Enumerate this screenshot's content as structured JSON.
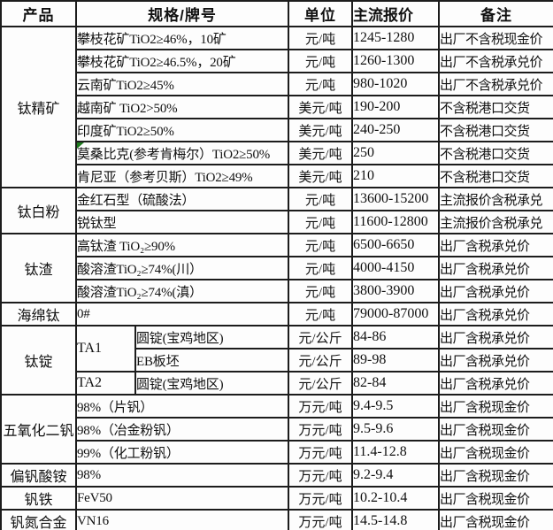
{
  "colors": {
    "marker_green": "#1e7b1e",
    "border": "#1c1c1c",
    "text": "#111111",
    "background": "#fdfdfd"
  },
  "table": {
    "headers": {
      "product": "产品",
      "spec": "规格/牌号",
      "unit": "单位",
      "price": "主流报价",
      "note": "备注"
    },
    "sections": [
      {
        "product": "钛精矿",
        "rows": [
          {
            "spec": "攀枝花矿TiO2≥46%，10矿",
            "unit": "元/吨",
            "price": "1245-1280",
            "note": "出厂不含税现金价"
          },
          {
            "spec": "攀枝花矿TiO2≥46.5%，20矿",
            "unit": "元/吨",
            "price": "1260-1300",
            "note": "出厂不含税承兑价"
          },
          {
            "spec": "云南矿TiO2≥45%",
            "unit": "元/吨",
            "price": "980-1020",
            "note": "出厂不含税承兑价"
          },
          {
            "spec": "越南矿 TiO2>50%",
            "unit": "美元/吨",
            "price": "190-200",
            "note": "不含税港口交货"
          },
          {
            "spec": "印度矿TiO2≥50%",
            "unit": "美元/吨",
            "price": "240-250",
            "note": "不含税港口交货"
          },
          {
            "spec": "莫桑比克(参考肯梅尔）TiO2≥50%",
            "unit": "美元/吨",
            "price": "250",
            "note": "不含税港口交货",
            "marker": true
          },
          {
            "spec": "肯尼亚（参考贝斯）TiO2≥49%",
            "unit": "美元/吨",
            "price": "210",
            "note": "不含税港口交货"
          }
        ]
      },
      {
        "product": "钛白粉",
        "rows": [
          {
            "spec": "金红石型（硫酸法）",
            "unit": "元/吨",
            "price": "13600-15200",
            "note": "主流报价含税承兑"
          },
          {
            "spec": "锐钛型",
            "unit": "元/吨",
            "price": "11600-12800",
            "note": "主流报价含税承兑"
          }
        ]
      },
      {
        "product": "钛渣",
        "rows": [
          {
            "spec": "高钛渣 TiO₂≥90%",
            "unit": "元/吨",
            "price": "6500-6650",
            "note": "出厂含税承兑价"
          },
          {
            "spec": "酸溶渣TiO₂≥74%(川）",
            "unit": "元/吨",
            "price": "4000-4150",
            "note": "出厂含税承兑价"
          },
          {
            "spec": "酸溶渣TiO₂≥74%(滇）",
            "unit": "元/吨",
            "price": "3800-3900",
            "note": "出厂含税承兑价"
          }
        ]
      },
      {
        "product": "海绵钛",
        "rows": [
          {
            "spec": "0#",
            "unit": "元/吨",
            "price": "79000-87000",
            "note": "出厂含税承兑价"
          }
        ]
      },
      {
        "product": "钛锭",
        "rows": [
          {
            "grade": "TA1",
            "grade_rowspan": 2,
            "spec": "圆锭(宝鸡地区)",
            "unit": "元/公斤",
            "price": "84-86",
            "note": "出厂含税承兑价"
          },
          {
            "sub": true,
            "spec": "EB板坯",
            "unit": "元/公斤",
            "price": "89-98",
            "note": "出厂含税承兑价"
          },
          {
            "grade": "TA2",
            "spec": "圆锭(宝鸡地区)",
            "unit": "元/公斤",
            "price": "82-84",
            "note": "出厂含税承兑价"
          }
        ]
      },
      {
        "product": "五氧化二钒",
        "rows": [
          {
            "spec": "98%（片钒）",
            "unit": "万元/吨",
            "price": "9.4-9.5",
            "note": "出厂含税现金价"
          },
          {
            "spec": "98%（冶金粉钒）",
            "unit": "万元/吨",
            "price": "9.5-9.6",
            "note": "出厂含税现金价"
          },
          {
            "spec": "99%（化工粉钒）",
            "unit": "万元/吨",
            "price": "11.4-12.8",
            "note": "出厂含税现金价"
          }
        ]
      },
      {
        "product": "偏钒酸铵",
        "rows": [
          {
            "spec": "98%",
            "unit": "万元/吨",
            "price": "9.2-9.4",
            "note": "出厂含税现金价"
          }
        ]
      },
      {
        "product": "钒铁",
        "rows": [
          {
            "spec": "FeV50",
            "unit": "万元/吨",
            "price": "10.2-10.4",
            "note": "出厂含税现金价"
          }
        ]
      },
      {
        "product": "钒氮合金",
        "rows": [
          {
            "spec": "VN16",
            "unit": "万元/吨",
            "price": "14.5-14.8",
            "note": "出厂含税现金价"
          }
        ]
      }
    ]
  }
}
